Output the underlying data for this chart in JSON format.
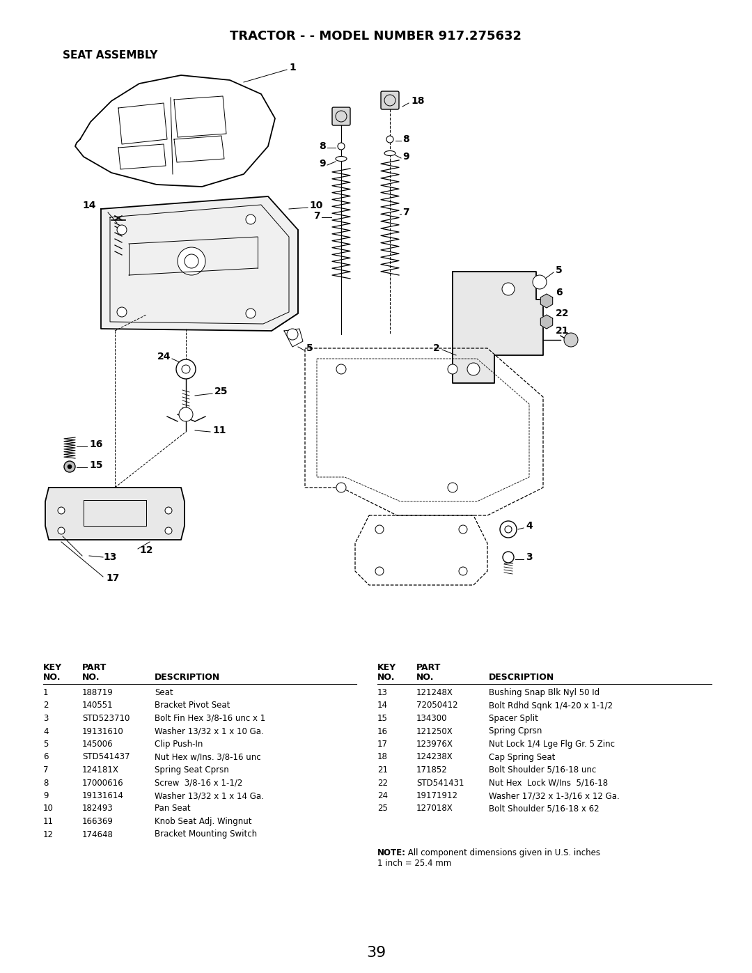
{
  "title": "TRACTOR - - MODEL NUMBER 917.275632",
  "subtitle": "SEAT ASSEMBLY",
  "page_number": "39",
  "bg_color": "#ffffff",
  "text_color": "#000000",
  "parts_left": [
    [
      "1",
      "188719",
      "Seat"
    ],
    [
      "2",
      "140551",
      "Bracket Pivot Seat"
    ],
    [
      "3",
      "STD523710",
      "Bolt Fin Hex 3/8-16 unc x 1"
    ],
    [
      "4",
      "19131610",
      "Washer 13/32 x 1 x 10 Ga."
    ],
    [
      "5",
      "145006",
      "Clip Push-In"
    ],
    [
      "6",
      "STD541437",
      "Nut Hex w/Ins. 3/8-16 unc"
    ],
    [
      "7",
      "124181X",
      "Spring Seat Cprsn"
    ],
    [
      "8",
      "17000616",
      "Screw  3/8-16 x 1-1/2"
    ],
    [
      "9",
      "19131614",
      "Washer 13/32 x 1 x 14 Ga."
    ],
    [
      "10",
      "182493",
      "Pan Seat"
    ],
    [
      "11",
      "166369",
      "Knob Seat Adj. Wingnut"
    ],
    [
      "12",
      "174648",
      "Bracket Mounting Switch"
    ]
  ],
  "parts_right": [
    [
      "13",
      "121248X",
      "Bushing Snap Blk Nyl 50 Id"
    ],
    [
      "14",
      "72050412",
      "Bolt Rdhd Sqnk 1/4-20 x 1-1/2"
    ],
    [
      "15",
      "134300",
      "Spacer Split"
    ],
    [
      "16",
      "121250X",
      "Spring Cprsn"
    ],
    [
      "17",
      "123976X",
      "Nut Lock 1/4 Lge Flg Gr. 5 Zinc"
    ],
    [
      "18",
      "124238X",
      "Cap Spring Seat"
    ],
    [
      "21",
      "171852",
      "Bolt Shoulder 5/16-18 unc"
    ],
    [
      "22",
      "STD541431",
      "Nut Hex  Lock W/Ins  5/16-18"
    ],
    [
      "24",
      "19171912",
      "Washer 17/32 x 1-3/16 x 12 Ga."
    ],
    [
      "25",
      "127018X",
      "Bolt Shoulder 5/16-18 x 62"
    ]
  ],
  "note_line1": "NOTE:  All component dimensions given in U.S. inches",
  "note_line2": "1 inch = 25.4 mm"
}
